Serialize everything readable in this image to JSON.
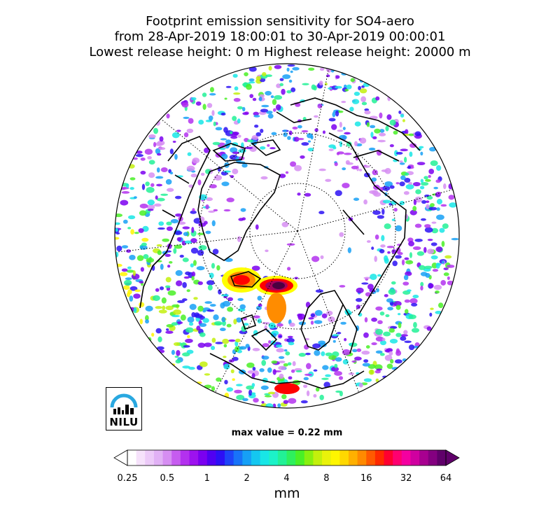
{
  "title": {
    "line1": "Footprint emission sensitivity for SO4-aero",
    "line2": "from 28-Apr-2019 18:00:01 to 30-Apr-2019 00:00:01",
    "line3": "Lowest release height: 0 m       Highest release height: 20000 m"
  },
  "max_value_text": "max value = 0.22 mm",
  "logo": {
    "text": "NILU",
    "arc_color": "#29a8e0"
  },
  "colorbar": {
    "unit": "mm",
    "tick_labels": [
      "0.25",
      "0.5",
      "1",
      "2",
      "4",
      "8",
      "16",
      "32",
      "64"
    ],
    "colors": [
      "#ffffff",
      "#f6e2fb",
      "#eccaf8",
      "#e1b1f5",
      "#d68ef2",
      "#c65cef",
      "#b331ee",
      "#9d12ef",
      "#7b00f0",
      "#5000f2",
      "#2c10f5",
      "#1e44f8",
      "#1873f8",
      "#16a0f6",
      "#14c7f0",
      "#18e6e6",
      "#1cf2c8",
      "#22f196",
      "#2ef05d",
      "#49f026",
      "#88f00f",
      "#c3f00c",
      "#e9f20a",
      "#fff600",
      "#ffd800",
      "#ffb000",
      "#ff8a00",
      "#ff5a00",
      "#ff2a00",
      "#ff0030",
      "#ff0070",
      "#f400a0",
      "#d000a0",
      "#a80090",
      "#840080",
      "#60006a"
    ],
    "arrow_left_color": "#ffffff",
    "arrow_right_color": "#60006a"
  },
  "map": {
    "projection": "orthographic",
    "features": [
      "coastlines",
      "graticule",
      "emission-sensitivity-field"
    ],
    "hotspot_colors": [
      "#ff0000",
      "#ff8c00",
      "#ffff00",
      "#a8005a",
      "#4a0040"
    ]
  }
}
